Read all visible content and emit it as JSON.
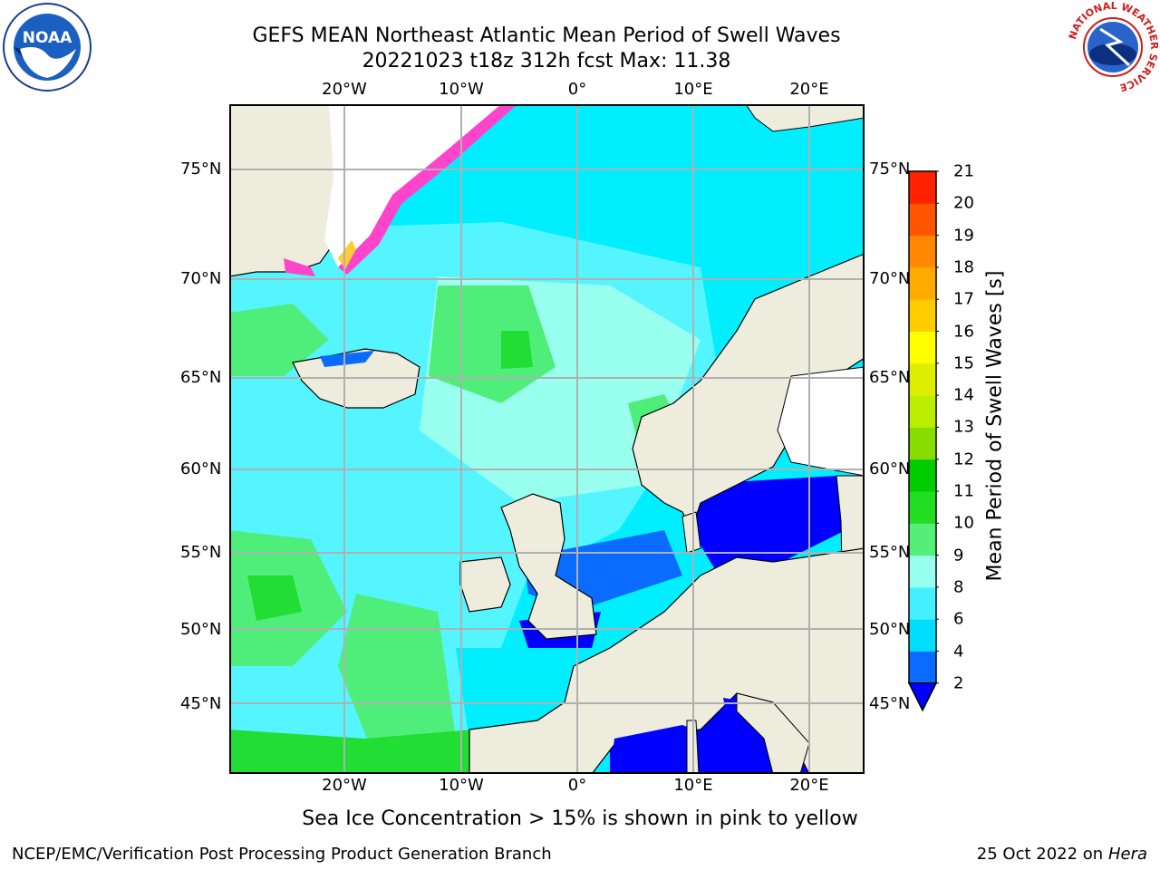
{
  "title": {
    "line1": "GEFS MEAN Northeast Atlantic Mean Period of Swell Waves",
    "line2": "20221023 t18z 312h fcst   Max: 11.38"
  },
  "map": {
    "lon_labels": [
      "20°W",
      "10°W",
      "0°",
      "10°E",
      "20°E"
    ],
    "lat_labels": [
      "75°N",
      "70°N",
      "65°N",
      "60°N",
      "55°N",
      "50°N",
      "45°N"
    ],
    "land_color": "#eeecdc",
    "grid_color": "#b0b0b0",
    "regions": [
      {
        "name": "ocean",
        "period_class": "4-6",
        "color": "#00eeff"
      },
      {
        "name": "open-atlantic",
        "period_class": "6-8",
        "color": "#55f5ff"
      },
      {
        "name": "norwegian-sea",
        "period_class": "8-9",
        "color": "#99ffee"
      },
      {
        "name": "swell-9-10",
        "period_class": "9-10",
        "color": "#4fee7a"
      },
      {
        "name": "swell-10-11",
        "period_class": "10-11",
        "color": "#22dd33"
      },
      {
        "name": "baltic-north-sea-mediterranean",
        "period_class": "2-4",
        "color": "#0000ff"
      },
      {
        "name": "sea-ice-edge",
        "period_class": "ice",
        "color": "#ff44cc"
      }
    ]
  },
  "colorbar": {
    "title": "Mean Period of Swell Waves [s]",
    "ticks": [
      "2",
      "4",
      "6",
      "8",
      "9",
      "10",
      "11",
      "12",
      "13",
      "14",
      "15",
      "16",
      "17",
      "18",
      "19",
      "20",
      "21"
    ],
    "colors": [
      "#0a6cff",
      "#00ddff",
      "#44f0ff",
      "#99ffee",
      "#55ee77",
      "#22dd22",
      "#00cc00",
      "#88dd00",
      "#bbee00",
      "#ddee00",
      "#ffff00",
      "#ffcc00",
      "#ffaa00",
      "#ff8800",
      "#ff5500",
      "#ff2200"
    ],
    "extend_color": "#0000ff"
  },
  "footer": {
    "note": "Sea Ice Concentration > 15% is shown in pink to yellow",
    "left": "NCEP/EMC/Verification Post Processing Product Generation Branch",
    "right_prefix": "25 Oct 2022 on ",
    "right_host": "Hera"
  },
  "logos": {
    "noaa_text": "NOAA",
    "nws_text": "NATIONAL WEATHER SERVICE"
  }
}
